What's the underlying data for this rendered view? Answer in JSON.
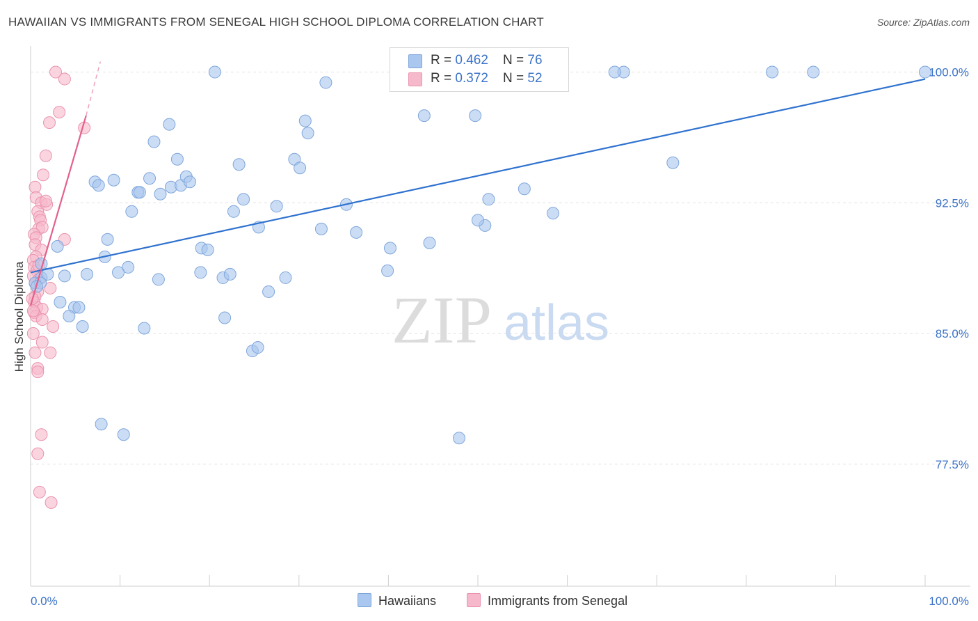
{
  "header": {
    "title": "HAWAIIAN VS IMMIGRANTS FROM SENEGAL HIGH SCHOOL DIPLOMA CORRELATION CHART",
    "source": "Source: ZipAtlas.com"
  },
  "legend": {
    "rows": [
      {
        "r_label": "R = ",
        "r_value": "0.462",
        "n_label": "N = ",
        "n_value": "76"
      },
      {
        "r_label": "R = ",
        "r_value": "0.372",
        "n_label": "N = ",
        "n_value": "52"
      }
    ],
    "bottom": [
      "Hawaiians",
      "Immigrants from Senegal"
    ]
  },
  "colors": {
    "blue_fill": "#a9c7ef",
    "blue_stroke": "#7fa6db",
    "blue_line": "#2f72cf",
    "pink_fill": "#f6b9cc",
    "pink_stroke": "#ea93ae",
    "pink_line": "#e4608c",
    "tick_label": "#3b73c8",
    "grid": "#e2e2e2"
  },
  "watermark": {
    "zip": "ZIP",
    "atlas": "atlas"
  },
  "chart_data": {
    "type": "scatter",
    "xlabel": "",
    "ylabel": "High School Diploma",
    "xlim": [
      0,
      100
    ],
    "ylim": [
      70.5,
      101.5
    ],
    "x_tick_labels": [
      "0.0%",
      "100.0%"
    ],
    "y_ticks": [
      77.5,
      85.0,
      92.5,
      100.0
    ],
    "y_tick_labels": [
      "77.5%",
      "85.0%",
      "92.5%",
      "100.0%"
    ],
    "grid": true,
    "series": [
      {
        "name": "Hawaiians",
        "points": [
          [
            20.6,
            100.0
          ],
          [
            33.0,
            99.4
          ],
          [
            66.3,
            100.0
          ],
          [
            65.3,
            100.0
          ],
          [
            82.9,
            100.0
          ],
          [
            87.5,
            100.0
          ],
          [
            100.0,
            100.0
          ],
          [
            44.0,
            97.5
          ],
          [
            49.7,
            97.5
          ],
          [
            15.5,
            97.0
          ],
          [
            30.7,
            97.2
          ],
          [
            31.0,
            96.5
          ],
          [
            13.8,
            96.0
          ],
          [
            16.4,
            95.0
          ],
          [
            23.3,
            94.7
          ],
          [
            29.5,
            95.0
          ],
          [
            30.1,
            94.5
          ],
          [
            71.8,
            94.8
          ],
          [
            9.3,
            93.8
          ],
          [
            7.2,
            93.7
          ],
          [
            7.6,
            93.5
          ],
          [
            13.3,
            93.9
          ],
          [
            15.7,
            93.4
          ],
          [
            16.8,
            93.5
          ],
          [
            17.4,
            94.0
          ],
          [
            17.8,
            93.7
          ],
          [
            12.0,
            93.1
          ],
          [
            12.2,
            93.1
          ],
          [
            14.5,
            93.0
          ],
          [
            23.8,
            92.7
          ],
          [
            35.3,
            92.4
          ],
          [
            51.2,
            92.7
          ],
          [
            55.2,
            93.3
          ],
          [
            11.3,
            92.0
          ],
          [
            22.7,
            92.0
          ],
          [
            27.5,
            92.3
          ],
          [
            50.8,
            91.2
          ],
          [
            58.4,
            91.9
          ],
          [
            50.0,
            91.5
          ],
          [
            25.5,
            91.1
          ],
          [
            32.5,
            91.0
          ],
          [
            36.4,
            90.8
          ],
          [
            44.6,
            90.2
          ],
          [
            8.6,
            90.4
          ],
          [
            3.0,
            90.0
          ],
          [
            19.1,
            89.9
          ],
          [
            19.8,
            89.8
          ],
          [
            40.2,
            89.9
          ],
          [
            8.3,
            89.4
          ],
          [
            1.2,
            89.0
          ],
          [
            10.9,
            88.8
          ],
          [
            1.2,
            88.2
          ],
          [
            1.9,
            88.4
          ],
          [
            3.8,
            88.3
          ],
          [
            6.3,
            88.4
          ],
          [
            9.8,
            88.5
          ],
          [
            14.3,
            88.1
          ],
          [
            19.0,
            88.5
          ],
          [
            21.5,
            88.2
          ],
          [
            22.3,
            88.4
          ],
          [
            28.5,
            88.2
          ],
          [
            39.9,
            88.6
          ],
          [
            0.5,
            87.9
          ],
          [
            1.1,
            87.9
          ],
          [
            0.7,
            87.7
          ],
          [
            26.6,
            87.4
          ],
          [
            3.3,
            86.8
          ],
          [
            4.9,
            86.5
          ],
          [
            5.4,
            86.5
          ],
          [
            4.3,
            86.0
          ],
          [
            21.7,
            85.9
          ],
          [
            5.8,
            85.4
          ],
          [
            12.7,
            85.3
          ],
          [
            24.8,
            84.0
          ],
          [
            25.4,
            84.2
          ],
          [
            7.9,
            79.8
          ],
          [
            10.4,
            79.2
          ],
          [
            47.9,
            79.0
          ]
        ],
        "trend": {
          "x0": 0,
          "y0": 88.5,
          "x1": 100,
          "y1": 99.6
        }
      },
      {
        "name": "Immigrants from Senegal",
        "points": [
          [
            2.8,
            100.0
          ],
          [
            3.8,
            99.6
          ],
          [
            3.2,
            97.7
          ],
          [
            2.1,
            97.1
          ],
          [
            6.0,
            96.8
          ],
          [
            1.7,
            95.2
          ],
          [
            1.4,
            94.1
          ],
          [
            0.5,
            93.4
          ],
          [
            0.6,
            92.8
          ],
          [
            1.2,
            92.5
          ],
          [
            1.8,
            92.4
          ],
          [
            1.7,
            92.6
          ],
          [
            0.8,
            92.0
          ],
          [
            1.0,
            91.7
          ],
          [
            1.1,
            91.5
          ],
          [
            0.9,
            91.0
          ],
          [
            1.3,
            91.1
          ],
          [
            0.4,
            90.7
          ],
          [
            0.6,
            90.5
          ],
          [
            3.8,
            90.4
          ],
          [
            0.5,
            90.1
          ],
          [
            1.2,
            89.8
          ],
          [
            0.6,
            89.4
          ],
          [
            0.3,
            89.2
          ],
          [
            0.4,
            88.8
          ],
          [
            0.7,
            88.6
          ],
          [
            0.3,
            88.3
          ],
          [
            0.9,
            88.1
          ],
          [
            0.5,
            87.9
          ],
          [
            2.2,
            87.6
          ],
          [
            0.8,
            87.4
          ],
          [
            0.5,
            87.1
          ],
          [
            0.4,
            86.8
          ],
          [
            0.7,
            86.5
          ],
          [
            1.3,
            86.4
          ],
          [
            0.4,
            86.2
          ],
          [
            0.6,
            86.0
          ],
          [
            1.3,
            85.8
          ],
          [
            2.5,
            85.4
          ],
          [
            0.3,
            85.0
          ],
          [
            1.3,
            84.5
          ],
          [
            2.2,
            83.9
          ],
          [
            0.5,
            83.9
          ],
          [
            0.8,
            83.0
          ],
          [
            0.8,
            82.8
          ],
          [
            1.2,
            79.2
          ],
          [
            0.8,
            78.1
          ],
          [
            1.0,
            75.9
          ],
          [
            2.3,
            75.3
          ],
          [
            0.2,
            87.0
          ],
          [
            0.3,
            86.3
          ],
          [
            0.9,
            88.9
          ]
        ],
        "trend": {
          "x0": 0,
          "y0": 86.6,
          "x1": 6.2,
          "y1": 97.5
        },
        "trend_dashed": {
          "x0": 6.2,
          "y0": 97.5,
          "x1": 7.8,
          "y1": 100.6
        }
      }
    ]
  }
}
